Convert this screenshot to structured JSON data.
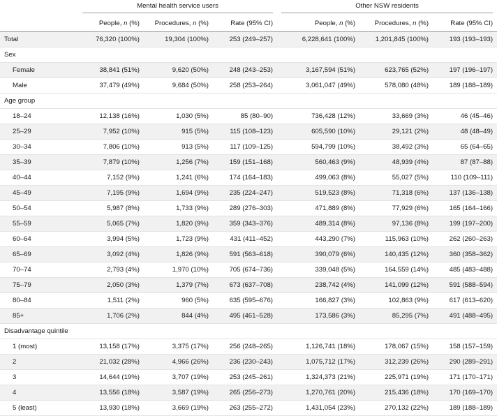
{
  "header": {
    "group1": "Mental health service users",
    "group2": "Other NSW residents",
    "columns": [
      "People, n (%)",
      "Procedures, n (%)",
      "Rate (95% CI)",
      "People, n (%)",
      "Procedures, n (%)",
      "Rate (95% CI)"
    ]
  },
  "rows": [
    {
      "type": "data",
      "shaded": true,
      "label": "Total",
      "cells": [
        "76,320 (100%)",
        "19,304 (100%)",
        "253 (249–257)",
        "6,228,641 (100%)",
        "1,201,845 (100%)",
        "193 (193–193)"
      ]
    },
    {
      "type": "section",
      "label": "Sex"
    },
    {
      "type": "data",
      "shaded": true,
      "label": "Female",
      "cells": [
        "38,841 (51%)",
        "9,620 (50%)",
        "248 (243–253)",
        "3,167,594 (51%)",
        "623,765 (52%)",
        "197 (196–197)"
      ]
    },
    {
      "type": "data",
      "shaded": false,
      "label": "Male",
      "cells": [
        "37,479 (49%)",
        "9,684 (50%)",
        "258 (253–264)",
        "3,061,047 (49%)",
        "578,080 (48%)",
        "189 (188–189)"
      ]
    },
    {
      "type": "section",
      "label": "Age group"
    },
    {
      "type": "data",
      "shaded": false,
      "label": "18–24",
      "cells": [
        "12,138 (16%)",
        "1,030 (5%)",
        "85 (80–90)",
        "736,428 (12%)",
        "33,669 (3%)",
        "46 (45–46)"
      ]
    },
    {
      "type": "data",
      "shaded": true,
      "label": "25–29",
      "cells": [
        "7,952 (10%)",
        "915 (5%)",
        "115 (108–123)",
        "605,590 (10%)",
        "29,121 (2%)",
        "48 (48–49)"
      ]
    },
    {
      "type": "data",
      "shaded": false,
      "label": "30–34",
      "cells": [
        "7,806 (10%)",
        "913 (5%)",
        "117 (109–125)",
        "594,799 (10%)",
        "38,492 (3%)",
        "65 (64–65)"
      ]
    },
    {
      "type": "data",
      "shaded": true,
      "label": "35–39",
      "cells": [
        "7,879 (10%)",
        "1,256 (7%)",
        "159 (151–168)",
        "560,463 (9%)",
        "48,939 (4%)",
        "87 (87–88)"
      ]
    },
    {
      "type": "data",
      "shaded": false,
      "label": "40–44",
      "cells": [
        "7,152 (9%)",
        "1,241 (6%)",
        "174 (164–183)",
        "499,063 (8%)",
        "55,027 (5%)",
        "110 (109–111)"
      ]
    },
    {
      "type": "data",
      "shaded": true,
      "label": "45–49",
      "cells": [
        "7,195 (9%)",
        "1,694 (9%)",
        "235 (224–247)",
        "519,523 (8%)",
        "71,318 (6%)",
        "137 (136–138)"
      ]
    },
    {
      "type": "data",
      "shaded": false,
      "label": "50–54",
      "cells": [
        "5,987 (8%)",
        "1,733 (9%)",
        "289 (276–303)",
        "471,889 (8%)",
        "77,929 (6%)",
        "165 (164–166)"
      ]
    },
    {
      "type": "data",
      "shaded": true,
      "label": "55–59",
      "cells": [
        "5,065 (7%)",
        "1,820 (9%)",
        "359 (343–376)",
        "489,314 (8%)",
        "97,136 (8%)",
        "199 (197–200)"
      ]
    },
    {
      "type": "data",
      "shaded": false,
      "label": "60–64",
      "cells": [
        "3,994 (5%)",
        "1,723 (9%)",
        "431 (411–452)",
        "443,290 (7%)",
        "115,963 (10%)",
        "262 (260–263)"
      ]
    },
    {
      "type": "data",
      "shaded": true,
      "label": "65–69",
      "cells": [
        "3,092 (4%)",
        "1,826 (9%)",
        "591 (563–618)",
        "390,079 (6%)",
        "140,435 (12%)",
        "360 (358–362)"
      ]
    },
    {
      "type": "data",
      "shaded": false,
      "label": "70–74",
      "cells": [
        "2,793 (4%)",
        "1,970 (10%)",
        "705 (674–736)",
        "339,048 (5%)",
        "164,559 (14%)",
        "485 (483–488)"
      ]
    },
    {
      "type": "data",
      "shaded": true,
      "label": "75–79",
      "cells": [
        "2,050 (3%)",
        "1,379 (7%)",
        "673 (637–708)",
        "238,742 (4%)",
        "141,099 (12%)",
        "591 (588–594)"
      ]
    },
    {
      "type": "data",
      "shaded": false,
      "label": "80–84",
      "cells": [
        "1,511 (2%)",
        "960 (5%)",
        "635 (595–676)",
        "166,827 (3%)",
        "102,863 (9%)",
        "617 (613–620)"
      ]
    },
    {
      "type": "data",
      "shaded": true,
      "label": "85+",
      "cells": [
        "1,706 (2%)",
        "844 (4%)",
        "495 (461–528)",
        "173,586 (3%)",
        "85,295 (7%)",
        "491 (488–495)"
      ]
    },
    {
      "type": "section",
      "label": "Disadvantage quintile"
    },
    {
      "type": "data",
      "shaded": false,
      "label": "1 (most)",
      "cells": [
        "13,158 (17%)",
        "3,375 (17%)",
        "256 (248–265)",
        "1,126,741 (18%)",
        "178,067 (15%)",
        "158 (157–159)"
      ]
    },
    {
      "type": "data",
      "shaded": true,
      "label": "2",
      "cells": [
        "21,032 (28%)",
        "4,966 (26%)",
        "236 (230–243)",
        "1,075,712 (17%)",
        "312,239 (26%)",
        "290 (289–291)"
      ]
    },
    {
      "type": "data",
      "shaded": false,
      "label": "3",
      "cells": [
        "14,644 (19%)",
        "3,707 (19%)",
        "253 (245–261)",
        "1,324,373 (21%)",
        "225,971 (19%)",
        "171 (170–171)"
      ]
    },
    {
      "type": "data",
      "shaded": true,
      "label": "4",
      "cells": [
        "13,556 (18%)",
        "3,587 (19%)",
        "265 (256–273)",
        "1,270,761 (20%)",
        "215,436 (18%)",
        "170 (169–170)"
      ]
    },
    {
      "type": "data",
      "shaded": false,
      "label": "5 (least)",
      "cells": [
        "13,930 (18%)",
        "3,669 (19%)",
        "263 (255–272)",
        "1,431,054 (23%)",
        "270,132 (22%)",
        "189 (188–189)"
      ]
    }
  ]
}
